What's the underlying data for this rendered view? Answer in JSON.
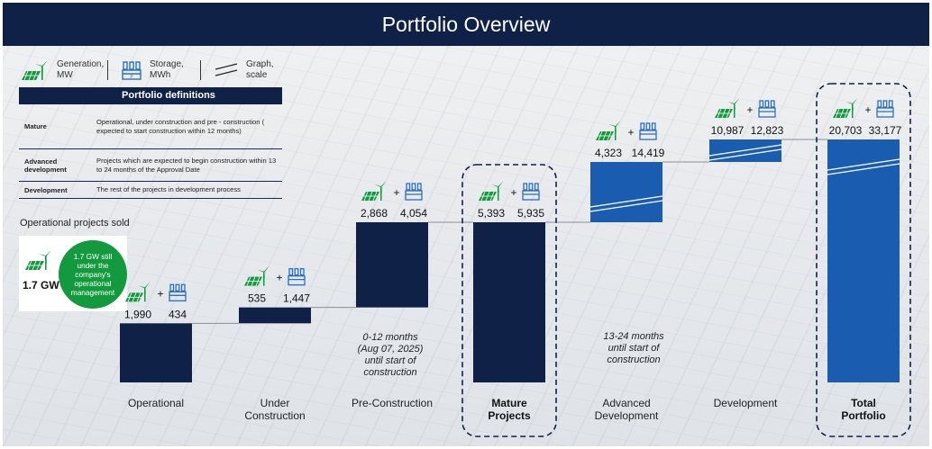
{
  "title": "Portfolio Overview",
  "legend": {
    "generation": "Generation, MW",
    "storage": "Storage, MWh",
    "graph": "Graph, scale"
  },
  "definitions": {
    "heading": "Portfolio definitions",
    "rows": [
      {
        "term": "Mature",
        "desc": "Operational,  under construction and pre  - construction ( expected to start construction within 12 months)"
      },
      {
        "term": "Advanced development",
        "desc": "Projects which are expected to begin construction within  13 to 24 months of the Approval Date"
      },
      {
        "term": "Development",
        "desc": "The rest of the projects in development process"
      }
    ]
  },
  "operational_sold": {
    "label": "Operational projects sold",
    "value": "1.7 GW",
    "badge": "1.7 GW still under the company's operational management"
  },
  "colors": {
    "navy": "#0f2147",
    "blue": "#1a5db0",
    "green": "#139a3e",
    "storage_blue": "#2a6fc0"
  },
  "chart_data": {
    "type": "bar",
    "subtype": "waterfall",
    "categories": [
      "Operational",
      "Under Construction",
      "Pre-Construction",
      "Mature Projects",
      "Advanced Development",
      "Development",
      "Total Portfolio"
    ],
    "generation_mw": [
      1990,
      535,
      2868,
      5393,
      4323,
      10987,
      20703
    ],
    "storage_mwh": [
      434,
      1447,
      4054,
      5935,
      14419,
      12823,
      33177
    ],
    "generation_labels": [
      "1,990",
      "535",
      "2,868",
      "5,393",
      "4,323",
      "10,987",
      "20,703"
    ],
    "storage_labels": [
      "434",
      "1,447",
      "4,054",
      "5,935",
      "14,419",
      "12,823",
      "33,177"
    ],
    "bar_kind": [
      "step",
      "step",
      "step",
      "total",
      "step",
      "step",
      "total"
    ],
    "scale_break": [
      false,
      false,
      false,
      false,
      true,
      true,
      true
    ],
    "highlight": [
      false,
      false,
      false,
      true,
      false,
      false,
      true
    ],
    "category_lines": [
      [
        "Operational"
      ],
      [
        "Under",
        "Construction"
      ],
      [
        "Pre-Construction"
      ],
      [
        "Mature",
        "Projects"
      ],
      [
        "Advanced",
        "Development"
      ],
      [
        "Development"
      ],
      [
        "Total",
        "Portfolio"
      ]
    ],
    "annotations": [
      {
        "after": "Pre-Construction",
        "lines": [
          "0-12 months",
          "(Aug 07, 2025)",
          "until start of",
          "construction"
        ]
      },
      {
        "after": "Advanced Development",
        "lines": [
          "13-24 months",
          "until start of",
          "construction"
        ]
      }
    ]
  }
}
